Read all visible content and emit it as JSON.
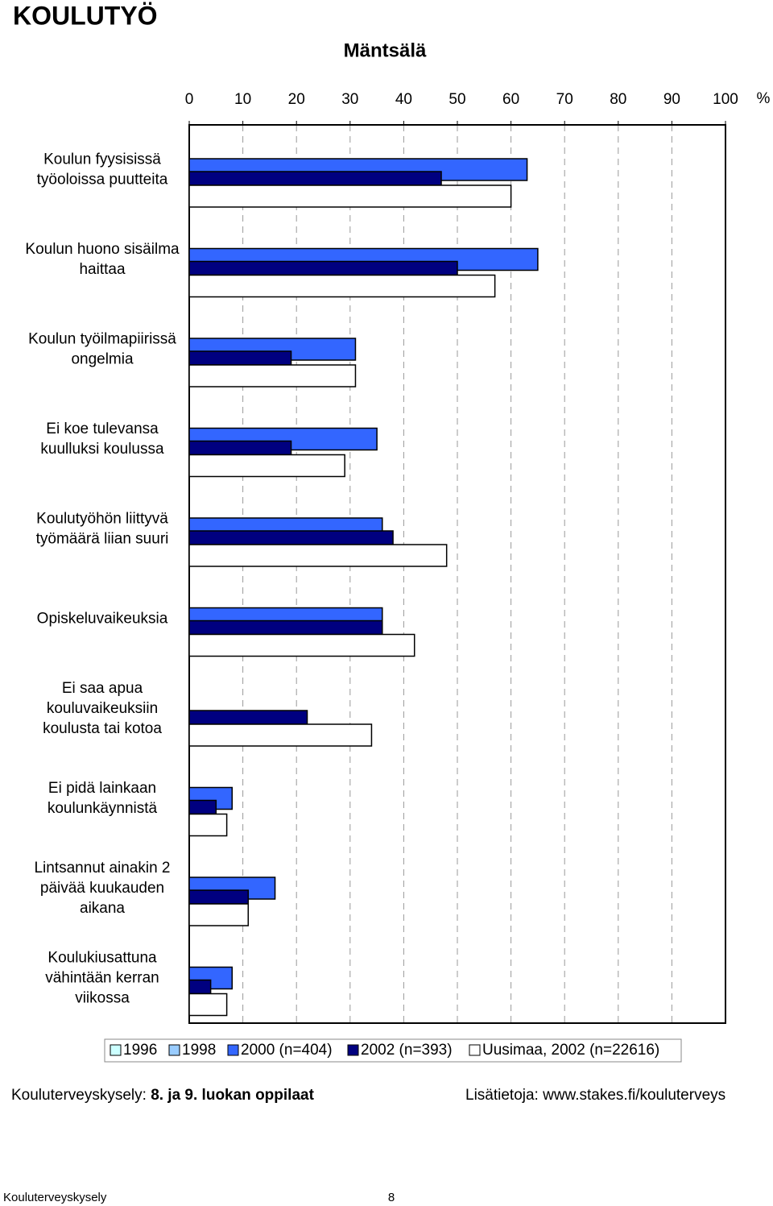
{
  "page_title": "KOULUTYÖ",
  "footer_left": "Kouluterveyskysely:",
  "footer_left_bold": "8. ja 9. luokan oppilaat",
  "footer_right": "Lisätietoja: www.stakes.fi/kouluterveys",
  "page_footer": "Kouluterveyskysely",
  "page_number": "8",
  "chart_data": {
    "type": "bar",
    "orientation": "horizontal",
    "title": "Mäntsälä",
    "x_unit": "%",
    "categories": [
      "Koulun fyysisissä\ntyöoloissa puutteita",
      "Koulun huono sisäilma\nhaittaa",
      "Koulun työilmapiirissä\nongelmia",
      "Ei koe tulevansa\nkuulluksi koulussa",
      "Koulutyöhön liittyvä\ntyömäärä liian suuri",
      "Opiskeluvaikeuksia",
      "Ei saa apua\nkouluvaikeuksiin\nkoulusta tai kotoa",
      "Ei pidä lainkaan\nkoulunkäynnistä",
      "Lintsannut ainakin 2\npäivää kuukauden\naikana",
      "Koulukiusattuna\nvähintään kerran\nviikossa"
    ],
    "series": [
      {
        "name": "1996",
        "color": "#ccffff",
        "values": [
          null,
          null,
          null,
          null,
          null,
          null,
          null,
          null,
          null,
          null
        ]
      },
      {
        "name": "1998",
        "color": "#99ccff",
        "values": [
          null,
          null,
          null,
          null,
          null,
          null,
          null,
          null,
          null,
          null
        ]
      },
      {
        "name": "2000 (n=404)",
        "color": "#3366ff",
        "values": [
          63,
          65,
          31,
          35,
          36,
          36,
          null,
          8,
          16,
          8
        ]
      },
      {
        "name": "2002 (n=393)",
        "color": "#000080",
        "values": [
          47,
          50,
          19,
          19,
          38,
          36,
          22,
          5,
          11,
          4
        ]
      },
      {
        "name": "Uusimaa, 2002 (n=22616)",
        "color": "#ffffff",
        "values": [
          60,
          57,
          31,
          29,
          48,
          42,
          34,
          7,
          11,
          7
        ]
      }
    ],
    "xlim": [
      0,
      100
    ],
    "xticks": [
      0,
      10,
      20,
      30,
      40,
      50,
      60,
      70,
      80,
      90,
      100
    ],
    "grid": true,
    "legend": "bottom"
  }
}
